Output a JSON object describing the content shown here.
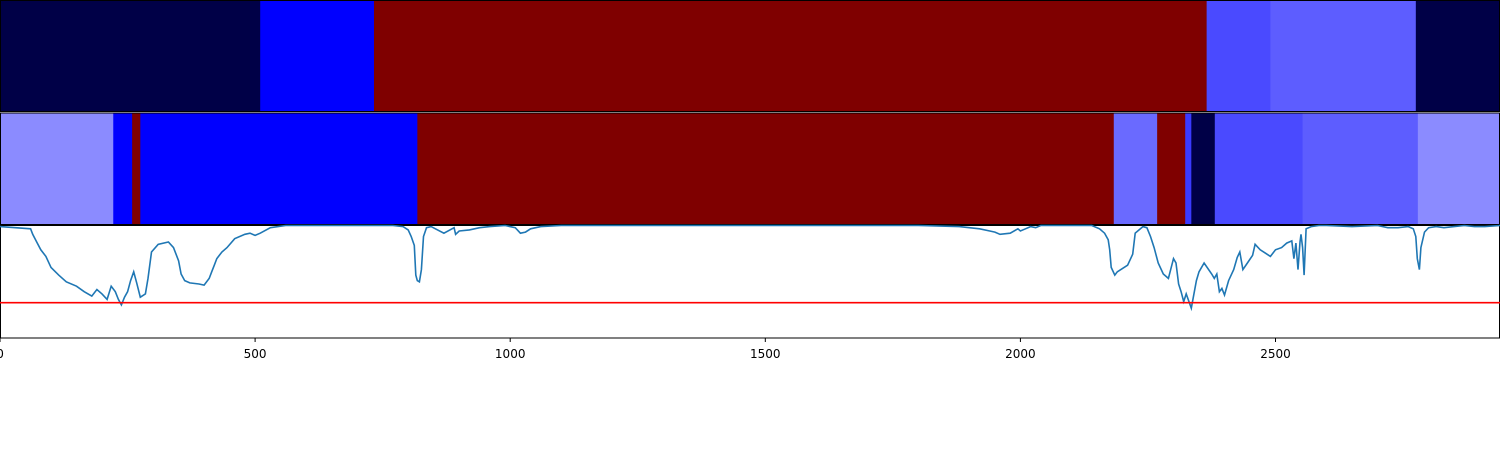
{
  "chart_data": {
    "type": "area",
    "x_axis": {
      "range": [
        0,
        2940
      ],
      "ticks": [
        0,
        500,
        1000,
        1500,
        2000,
        2500
      ],
      "tick_labels": [
        "0",
        "500",
        "1000",
        "1500",
        "2000",
        "2500"
      ]
    },
    "tracks": [
      {
        "type": "heatmap",
        "segments": [
          {
            "start": 0,
            "end": 510,
            "color": "#000047"
          },
          {
            "start": 510,
            "end": 733,
            "color": "#0000ff"
          },
          {
            "start": 733,
            "end": 2365,
            "color": "#7f0000"
          },
          {
            "start": 2365,
            "end": 2490,
            "color": "#4a4aff"
          },
          {
            "start": 2490,
            "end": 2775,
            "color": "#5d5dff"
          },
          {
            "start": 2775,
            "end": 2940,
            "color": "#000047"
          }
        ]
      },
      {
        "type": "heatmap",
        "segments": [
          {
            "start": 0,
            "end": 222,
            "color": "#8b8bff"
          },
          {
            "start": 222,
            "end": 259,
            "color": "#0000ff"
          },
          {
            "start": 259,
            "end": 275,
            "color": "#7f0000"
          },
          {
            "start": 275,
            "end": 818,
            "color": "#0000ff"
          },
          {
            "start": 818,
            "end": 2183,
            "color": "#7f0000"
          },
          {
            "start": 2183,
            "end": 2268,
            "color": "#6a6aff"
          },
          {
            "start": 2268,
            "end": 2323,
            "color": "#7f0000"
          },
          {
            "start": 2323,
            "end": 2335,
            "color": "#3a3aff"
          },
          {
            "start": 2335,
            "end": 2381,
            "color": "#000047"
          },
          {
            "start": 2381,
            "end": 2553,
            "color": "#4a4aff"
          },
          {
            "start": 2553,
            "end": 2779,
            "color": "#5d5dff"
          },
          {
            "start": 2779,
            "end": 2940,
            "color": "#8b8bff"
          }
        ]
      }
    ],
    "series": [
      {
        "type": "line",
        "color": "#1f77b4",
        "x": [
          0,
          60,
          64,
          72,
          80,
          90,
          100,
          115,
          130,
          150,
          165,
          180,
          190,
          200,
          210,
          218,
          226,
          232,
          238,
          244,
          250,
          256,
          262,
          268,
          275,
          285,
          290,
          297,
          310,
          330,
          340,
          350,
          355,
          362,
          372,
          390,
          400,
          410,
          415,
          420,
          425,
          435,
          445,
          460,
          480,
          490,
          500,
          510,
          530,
          560,
          600,
          700,
          770,
          790,
          800,
          806,
          812,
          815,
          818,
          822,
          826,
          830,
          836,
          845,
          870,
          890,
          893,
          900,
          920,
          940,
          960,
          990,
          1010,
          1020,
          1030,
          1040,
          1060,
          1100,
          1200,
          1500,
          1800,
          1880,
          1920,
          1940,
          1950,
          1960,
          1980,
          1995,
          2000,
          2010,
          2020,
          2030,
          2040,
          2100,
          2140,
          2155,
          2165,
          2172,
          2175,
          2178,
          2185,
          2190,
          2210,
          2220,
          2225,
          2240,
          2248,
          2255,
          2262,
          2270,
          2280,
          2290,
          2300,
          2305,
          2310,
          2315,
          2320,
          2325,
          2335,
          2345,
          2350,
          2360,
          2375,
          2380,
          2385,
          2390,
          2395,
          2400,
          2408,
          2418,
          2425,
          2430,
          2436,
          2445,
          2455,
          2460,
          2470,
          2480,
          2490,
          2500,
          2512,
          2522,
          2532,
          2536,
          2540,
          2544,
          2548,
          2550,
          2553,
          2556,
          2560,
          2570,
          2585,
          2600,
          2650,
          2700,
          2720,
          2740,
          2760,
          2770,
          2775,
          2778,
          2782,
          2785,
          2792,
          2800,
          2815,
          2830,
          2850,
          2870,
          2890,
          2910,
          2940
        ],
        "y": [
          0.99,
          0.97,
          0.92,
          0.85,
          0.78,
          0.72,
          0.62,
          0.55,
          0.49,
          0.45,
          0.4,
          0.36,
          0.42,
          0.38,
          0.33,
          0.45,
          0.4,
          0.33,
          0.28,
          0.35,
          0.4,
          0.5,
          0.58,
          0.48,
          0.35,
          0.38,
          0.52,
          0.76,
          0.83,
          0.85,
          0.8,
          0.68,
          0.56,
          0.5,
          0.48,
          0.47,
          0.46,
          0.52,
          0.58,
          0.64,
          0.7,
          0.76,
          0.8,
          0.88,
          0.92,
          0.93,
          0.91,
          0.93,
          0.98,
          1.0,
          1.0,
          1.0,
          1.0,
          0.99,
          0.96,
          0.9,
          0.82,
          0.55,
          0.5,
          0.49,
          0.6,
          0.9,
          0.98,
          0.99,
          0.93,
          0.98,
          0.92,
          0.95,
          0.96,
          0.98,
          0.99,
          1.0,
          0.98,
          0.93,
          0.94,
          0.97,
          0.99,
          1.0,
          1.0,
          1.0,
          1.0,
          0.99,
          0.97,
          0.95,
          0.94,
          0.92,
          0.93,
          0.97,
          0.95,
          0.97,
          0.99,
          0.98,
          1.0,
          1.0,
          1.0,
          0.97,
          0.93,
          0.87,
          0.78,
          0.62,
          0.55,
          0.58,
          0.64,
          0.74,
          0.93,
          0.99,
          0.98,
          0.9,
          0.8,
          0.66,
          0.56,
          0.52,
          0.7,
          0.66,
          0.47,
          0.4,
          0.31,
          0.38,
          0.25,
          0.5,
          0.58,
          0.66,
          0.56,
          0.52,
          0.56,
          0.4,
          0.43,
          0.37,
          0.5,
          0.6,
          0.71,
          0.76,
          0.6,
          0.66,
          0.73,
          0.83,
          0.78,
          0.75,
          0.72,
          0.78,
          0.8,
          0.84,
          0.86,
          0.7,
          0.84,
          0.6,
          0.85,
          0.92,
          0.8,
          0.55,
          0.97,
          0.99,
          1.0,
          1.0,
          0.99,
          1.0,
          0.98,
          0.98,
          0.99,
          0.97,
          0.9,
          0.7,
          0.6,
          0.8,
          0.94,
          0.98,
          0.99,
          0.98,
          0.99,
          1.0,
          0.99,
          0.99,
          1.0
        ],
        "ylim": [
          -0.02,
          1.0
        ]
      },
      {
        "type": "line",
        "color": "#ff0000",
        "x": [
          0,
          2940
        ],
        "y": [
          0.3,
          0.3
        ]
      }
    ]
  }
}
